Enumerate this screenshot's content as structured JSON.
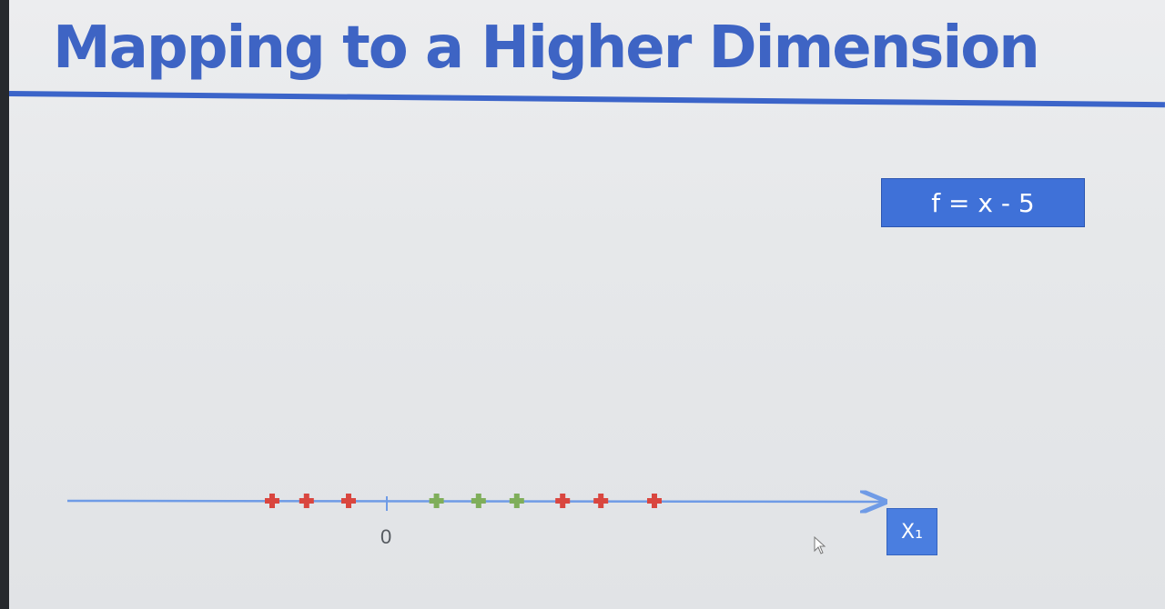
{
  "slide": {
    "title": "Mapping to a Higher Dimension",
    "formula": "f = x - 5"
  },
  "axis": {
    "tick_label": "0",
    "axis_name": "X₁",
    "point_colors": {
      "red": "#d9463f",
      "green": "#7fae5a"
    }
  },
  "chart_data": {
    "type": "scatter",
    "x_points": [
      {
        "x": -3.0,
        "class": "red"
      },
      {
        "x": -2.1,
        "class": "red"
      },
      {
        "x": -1.0,
        "class": "red"
      },
      {
        "x": 1.3,
        "class": "green"
      },
      {
        "x": 2.4,
        "class": "green"
      },
      {
        "x": 3.4,
        "class": "green"
      },
      {
        "x": 4.6,
        "class": "red"
      },
      {
        "x": 5.6,
        "class": "red"
      },
      {
        "x": 7.0,
        "class": "red"
      }
    ],
    "ticks": [
      0
    ],
    "xlabel": "X₁"
  },
  "icons": {
    "cursor": "mouse-pointer-icon"
  }
}
